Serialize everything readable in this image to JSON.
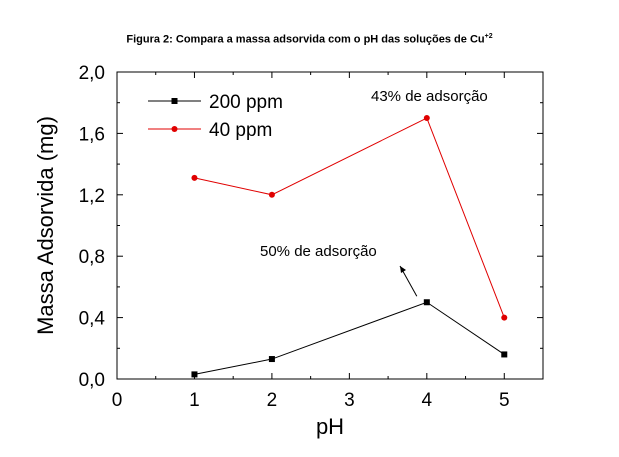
{
  "figure": {
    "title_main": "Figura 2: Compara a massa adsorvida com o pH das soluções de Cu",
    "title_sup": "+2"
  },
  "chart_data": {
    "type": "line",
    "xlabel": "pH",
    "ylabel": "Massa Adsorvida (mg)",
    "xlim": [
      0,
      5.5
    ],
    "ylim": [
      0,
      2.0
    ],
    "x_ticks": [
      "0",
      "1",
      "2",
      "3",
      "4",
      "5"
    ],
    "y_ticks": [
      "0,0",
      "0,4",
      "0,8",
      "1,2",
      "1,6",
      "2,0"
    ],
    "grid": false,
    "legend_position": "top-left",
    "series": [
      {
        "name": "200 ppm",
        "color": "#000000",
        "marker": "square",
        "x": [
          1,
          2,
          4,
          5
        ],
        "y": [
          0.03,
          0.13,
          0.5,
          0.16
        ]
      },
      {
        "name": "40  ppm",
        "color": "#e00000",
        "marker": "circle",
        "x": [
          1,
          2,
          4,
          5
        ],
        "y": [
          1.31,
          1.2,
          1.7,
          0.4
        ]
      }
    ],
    "annotations": [
      {
        "text": "43% de adsorção"
      },
      {
        "text": "50% de adsorção"
      }
    ]
  }
}
